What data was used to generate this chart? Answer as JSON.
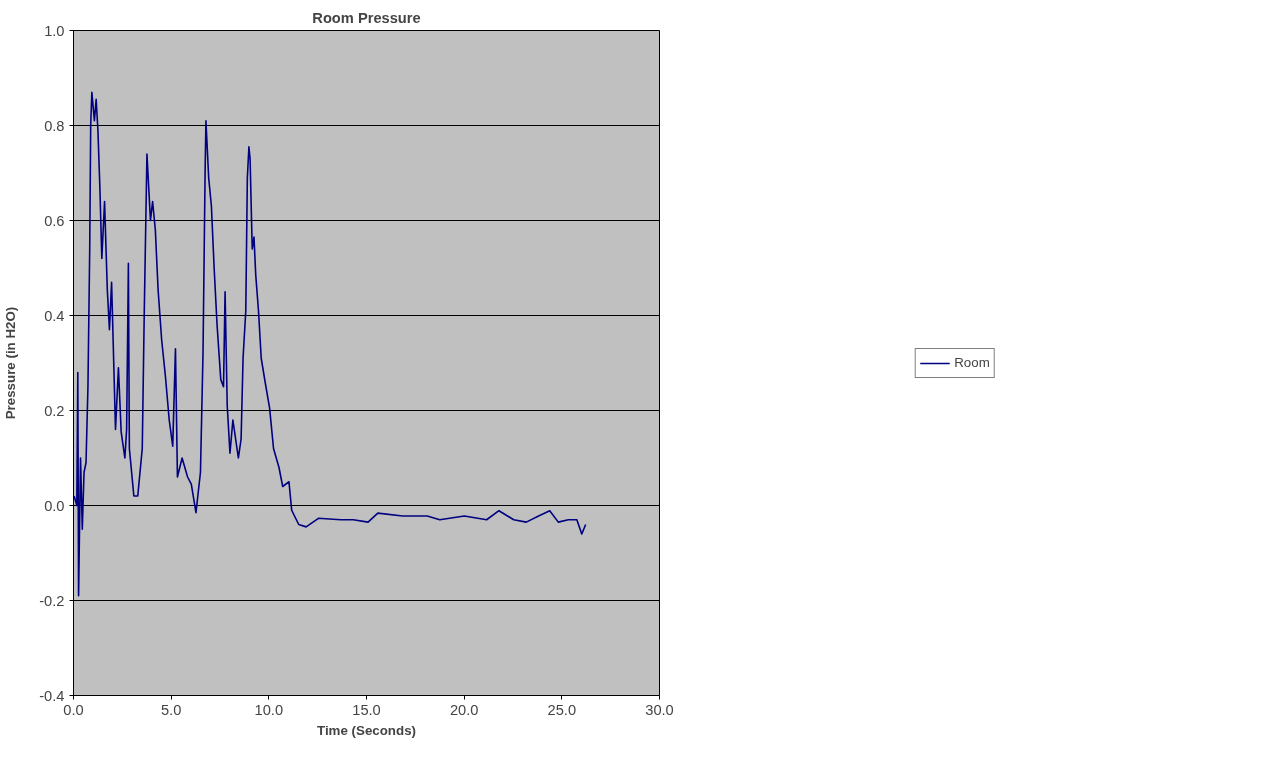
{
  "chart_data": {
    "type": "line",
    "title": "Room Pressure",
    "xlabel": "Time (Seconds)",
    "ylabel": "Pressure (in H2O)",
    "xlim": [
      0,
      30
    ],
    "xticks": [
      {
        "value": 0,
        "label": "0.0"
      },
      {
        "value": 5,
        "label": "5.0"
      },
      {
        "value": 10,
        "label": "10.0"
      },
      {
        "value": 15,
        "label": "15.0"
      },
      {
        "value": 20,
        "label": "20.0"
      },
      {
        "value": 25,
        "label": "25.0"
      },
      {
        "value": 30,
        "label": "30.0"
      }
    ],
    "ylim": [
      -0.4,
      1.0
    ],
    "yticks": [
      {
        "value": -0.4,
        "label": "-0.4"
      },
      {
        "value": -0.2,
        "label": "-0.2"
      },
      {
        "value": 0,
        "label": "0.0"
      },
      {
        "value": 0.2,
        "label": "0.2"
      },
      {
        "value": 0.4,
        "label": "0.4"
      },
      {
        "value": 0.6,
        "label": "0.6"
      },
      {
        "value": 0.8,
        "label": "0.8"
      },
      {
        "value": 1.0,
        "label": "1.0"
      }
    ],
    "grid": "y",
    "legend": "right",
    "line_style": "solid",
    "series": [
      {
        "name": "Room",
        "color": "#000080",
        "x": [
          0.03,
          0.17,
          0.22,
          0.26,
          0.36,
          0.45,
          0.54,
          0.64,
          0.74,
          0.83,
          0.88,
          0.94,
          1.07,
          1.16,
          1.25,
          1.35,
          1.45,
          1.59,
          1.73,
          1.84,
          1.95,
          2.15,
          2.3,
          2.44,
          2.63,
          2.72,
          2.81,
          2.86,
          3.09,
          3.29,
          3.52,
          3.62,
          3.76,
          3.94,
          4.05,
          4.19,
          4.33,
          4.51,
          4.71,
          4.9,
          5.08,
          5.22,
          5.32,
          5.56,
          5.84,
          6.03,
          6.27,
          6.5,
          6.63,
          6.74,
          6.78,
          6.92,
          7.06,
          7.2,
          7.35,
          7.54,
          7.68,
          7.76,
          7.87,
          8.01,
          8.16,
          8.44,
          8.58,
          8.68,
          8.82,
          8.9,
          8.98,
          9.04,
          9.15,
          9.24,
          9.33,
          9.47,
          9.61,
          9.81,
          10.04,
          10.24,
          10.52,
          10.71,
          11.03,
          11.17,
          11.53,
          11.91,
          12.54,
          13.68,
          14.32,
          15.08,
          15.58,
          16.85,
          18.11,
          18.75,
          20.01,
          21.15,
          21.78,
          22.54,
          23.18,
          23.81,
          24.38,
          24.82,
          25.33,
          25.77,
          26.02,
          26.22
        ],
        "values": [
          0.02,
          0.0,
          0.28,
          -0.19,
          0.1,
          -0.05,
          0.07,
          0.09,
          0.25,
          0.54,
          0.8,
          0.87,
          0.81,
          0.855,
          0.79,
          0.67,
          0.52,
          0.64,
          0.455,
          0.37,
          0.47,
          0.16,
          0.29,
          0.155,
          0.1,
          0.16,
          0.51,
          0.12,
          0.02,
          0.02,
          0.12,
          0.4,
          0.74,
          0.6,
          0.64,
          0.58,
          0.455,
          0.35,
          0.27,
          0.18,
          0.125,
          0.33,
          0.06,
          0.1,
          0.06,
          0.045,
          -0.015,
          0.07,
          0.32,
          0.71,
          0.81,
          0.69,
          0.63,
          0.5,
          0.38,
          0.265,
          0.25,
          0.45,
          0.21,
          0.11,
          0.18,
          0.1,
          0.14,
          0.31,
          0.41,
          0.69,
          0.755,
          0.73,
          0.54,
          0.565,
          0.485,
          0.41,
          0.31,
          0.26,
          0.205,
          0.12,
          0.08,
          0.04,
          0.05,
          -0.01,
          -0.04,
          -0.045,
          -0.027,
          -0.03,
          -0.03,
          -0.035,
          -0.016,
          -0.022,
          -0.022,
          -0.03,
          -0.022,
          -0.03,
          -0.011,
          -0.03,
          -0.035,
          -0.022,
          -0.011,
          -0.035,
          -0.03,
          -0.03,
          -0.06,
          -0.04
        ]
      }
    ]
  }
}
